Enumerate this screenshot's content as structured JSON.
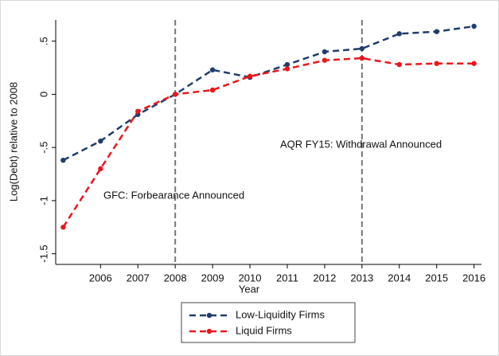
{
  "chart_data": {
    "type": "line",
    "x": [
      2005,
      2006,
      2007,
      2008,
      2009,
      2010,
      2011,
      2012,
      2013,
      2014,
      2015,
      2016
    ],
    "series": [
      {
        "name": "Low-Liquidity Firms",
        "color": "#1f3d6b",
        "values": [
          -0.62,
          -0.44,
          -0.19,
          0,
          0.23,
          0.16,
          0.28,
          0.4,
          0.43,
          0.57,
          0.59,
          0.64
        ]
      },
      {
        "name": "Liquid Firms",
        "color": "#e8171c",
        "values": [
          -1.25,
          -0.7,
          -0.16,
          0,
          0.04,
          0.17,
          0.24,
          0.32,
          0.34,
          0.28,
          0.29,
          0.29
        ]
      }
    ],
    "xlabel": "Year",
    "ylabel": "Log(Debt) relative to 2008",
    "xlim": [
      2004.8,
      2016.2
    ],
    "xticks": [
      2006,
      2007,
      2008,
      2009,
      2010,
      2011,
      2012,
      2013,
      2014,
      2015,
      2016
    ],
    "ylim": [
      -1.6,
      0.7
    ],
    "yticks": [
      {
        "value": -1.5,
        "label": "-1.5"
      },
      -1,
      {
        "value": -0.5,
        "label": "-.5"
      },
      0,
      {
        "value": 0.5,
        "label": ".5"
      }
    ],
    "vlines": [
      2008,
      2013
    ],
    "annotations": [
      "GFC: Forbearance Announced",
      "AQR FY15: Withdrawal Announced"
    ],
    "grid": false,
    "legend": "bottom"
  }
}
